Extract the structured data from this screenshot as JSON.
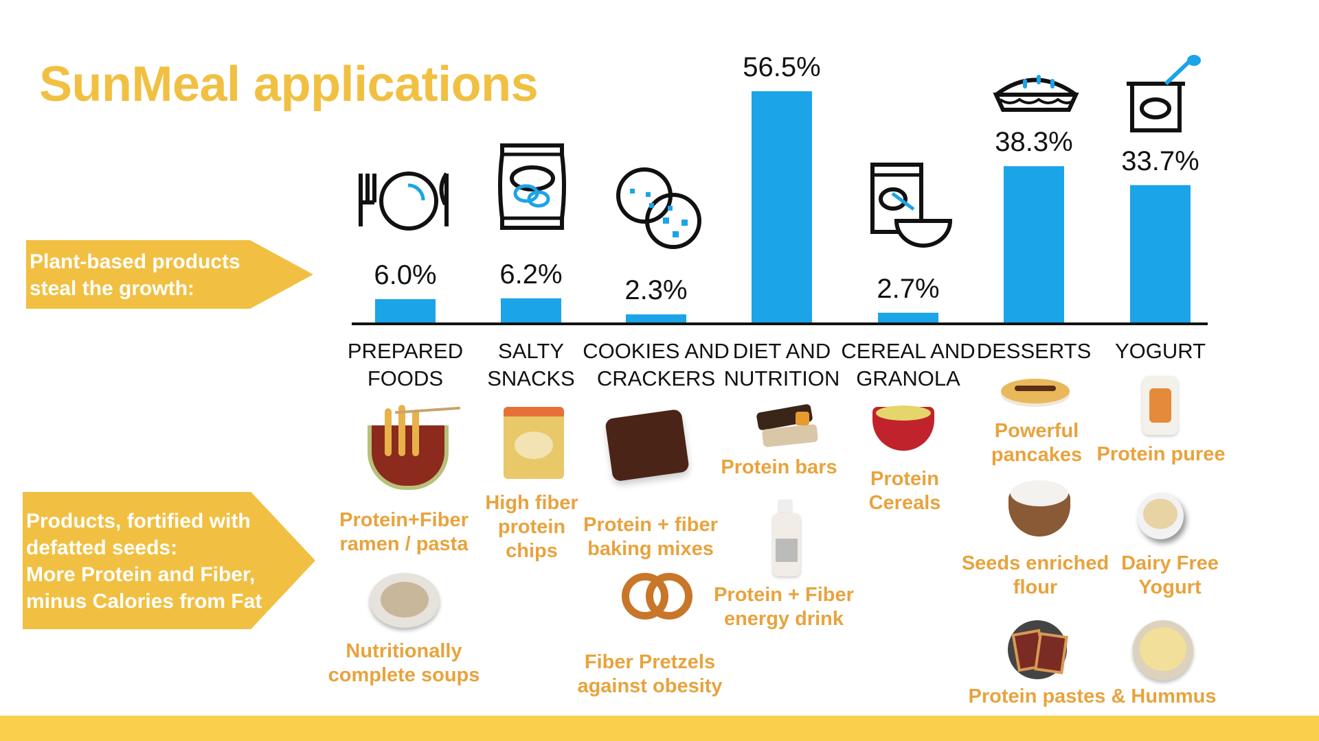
{
  "slide": {
    "title": "SunMeal applications",
    "arrow_growth": [
      "Plant-based products",
      "steal the growth:"
    ],
    "arrow_fortified": [
      "Products, fortified with",
      "defatted seeds:",
      "More Protein and Fiber,",
      "minus Calories from Fat"
    ]
  },
  "chart_data": {
    "type": "bar",
    "categories": [
      [
        "PREPARED",
        "FOODS"
      ],
      [
        "SALTY",
        "SNACKS"
      ],
      [
        "COOKIES AND",
        "CRACKERS"
      ],
      [
        "DIET AND",
        "NUTRITION"
      ],
      [
        "CEREAL AND",
        "GRANOLA"
      ],
      [
        "DESSERTS"
      ],
      [
        "YOGURT"
      ]
    ],
    "values": [
      6.0,
      6.2,
      2.3,
      56.5,
      2.7,
      38.3,
      33.7
    ],
    "value_labels": [
      "6.0%",
      "6.2%",
      "2.3%",
      "56.5%",
      "2.7%",
      "38.3%",
      "33.7%"
    ],
    "ylim": [
      0,
      60
    ],
    "bar_color": "#1BA4E8",
    "grid": false,
    "icons": [
      "plate-cutlery-icon",
      "chip-bag-icon",
      "cookies-icon",
      "",
      "cereal-box-bowl-icon",
      "pie-icon",
      "yogurt-cup-icon"
    ]
  },
  "products": {
    "ramen": [
      "Protein+Fiber",
      "ramen / pasta"
    ],
    "soups": [
      "Nutritionally",
      "complete soups"
    ],
    "chips": [
      "High fiber",
      "protein",
      "chips"
    ],
    "baking": [
      "Protein + fiber",
      "baking mixes"
    ],
    "pretzels": [
      "Fiber Pretzels",
      "against obesity"
    ],
    "bars": [
      "Protein bars"
    ],
    "drink": [
      "Protein + Fiber",
      "energy drink"
    ],
    "cereals": [
      "Protein",
      "Cereals"
    ],
    "pancakes": [
      "Powerful",
      "pancakes"
    ],
    "flour": [
      "Seeds enriched",
      "flour"
    ],
    "pastes": [
      "Protein pastes & Hummus"
    ],
    "puree": [
      "Protein puree"
    ],
    "yogurt_df": [
      "Dairy Free",
      "Yogurt"
    ]
  },
  "colors": {
    "accent": "#F1C042",
    "bar": "#1BA4E8",
    "product_text": "#E8A33D",
    "bottom_bar": "#F8D04C"
  }
}
